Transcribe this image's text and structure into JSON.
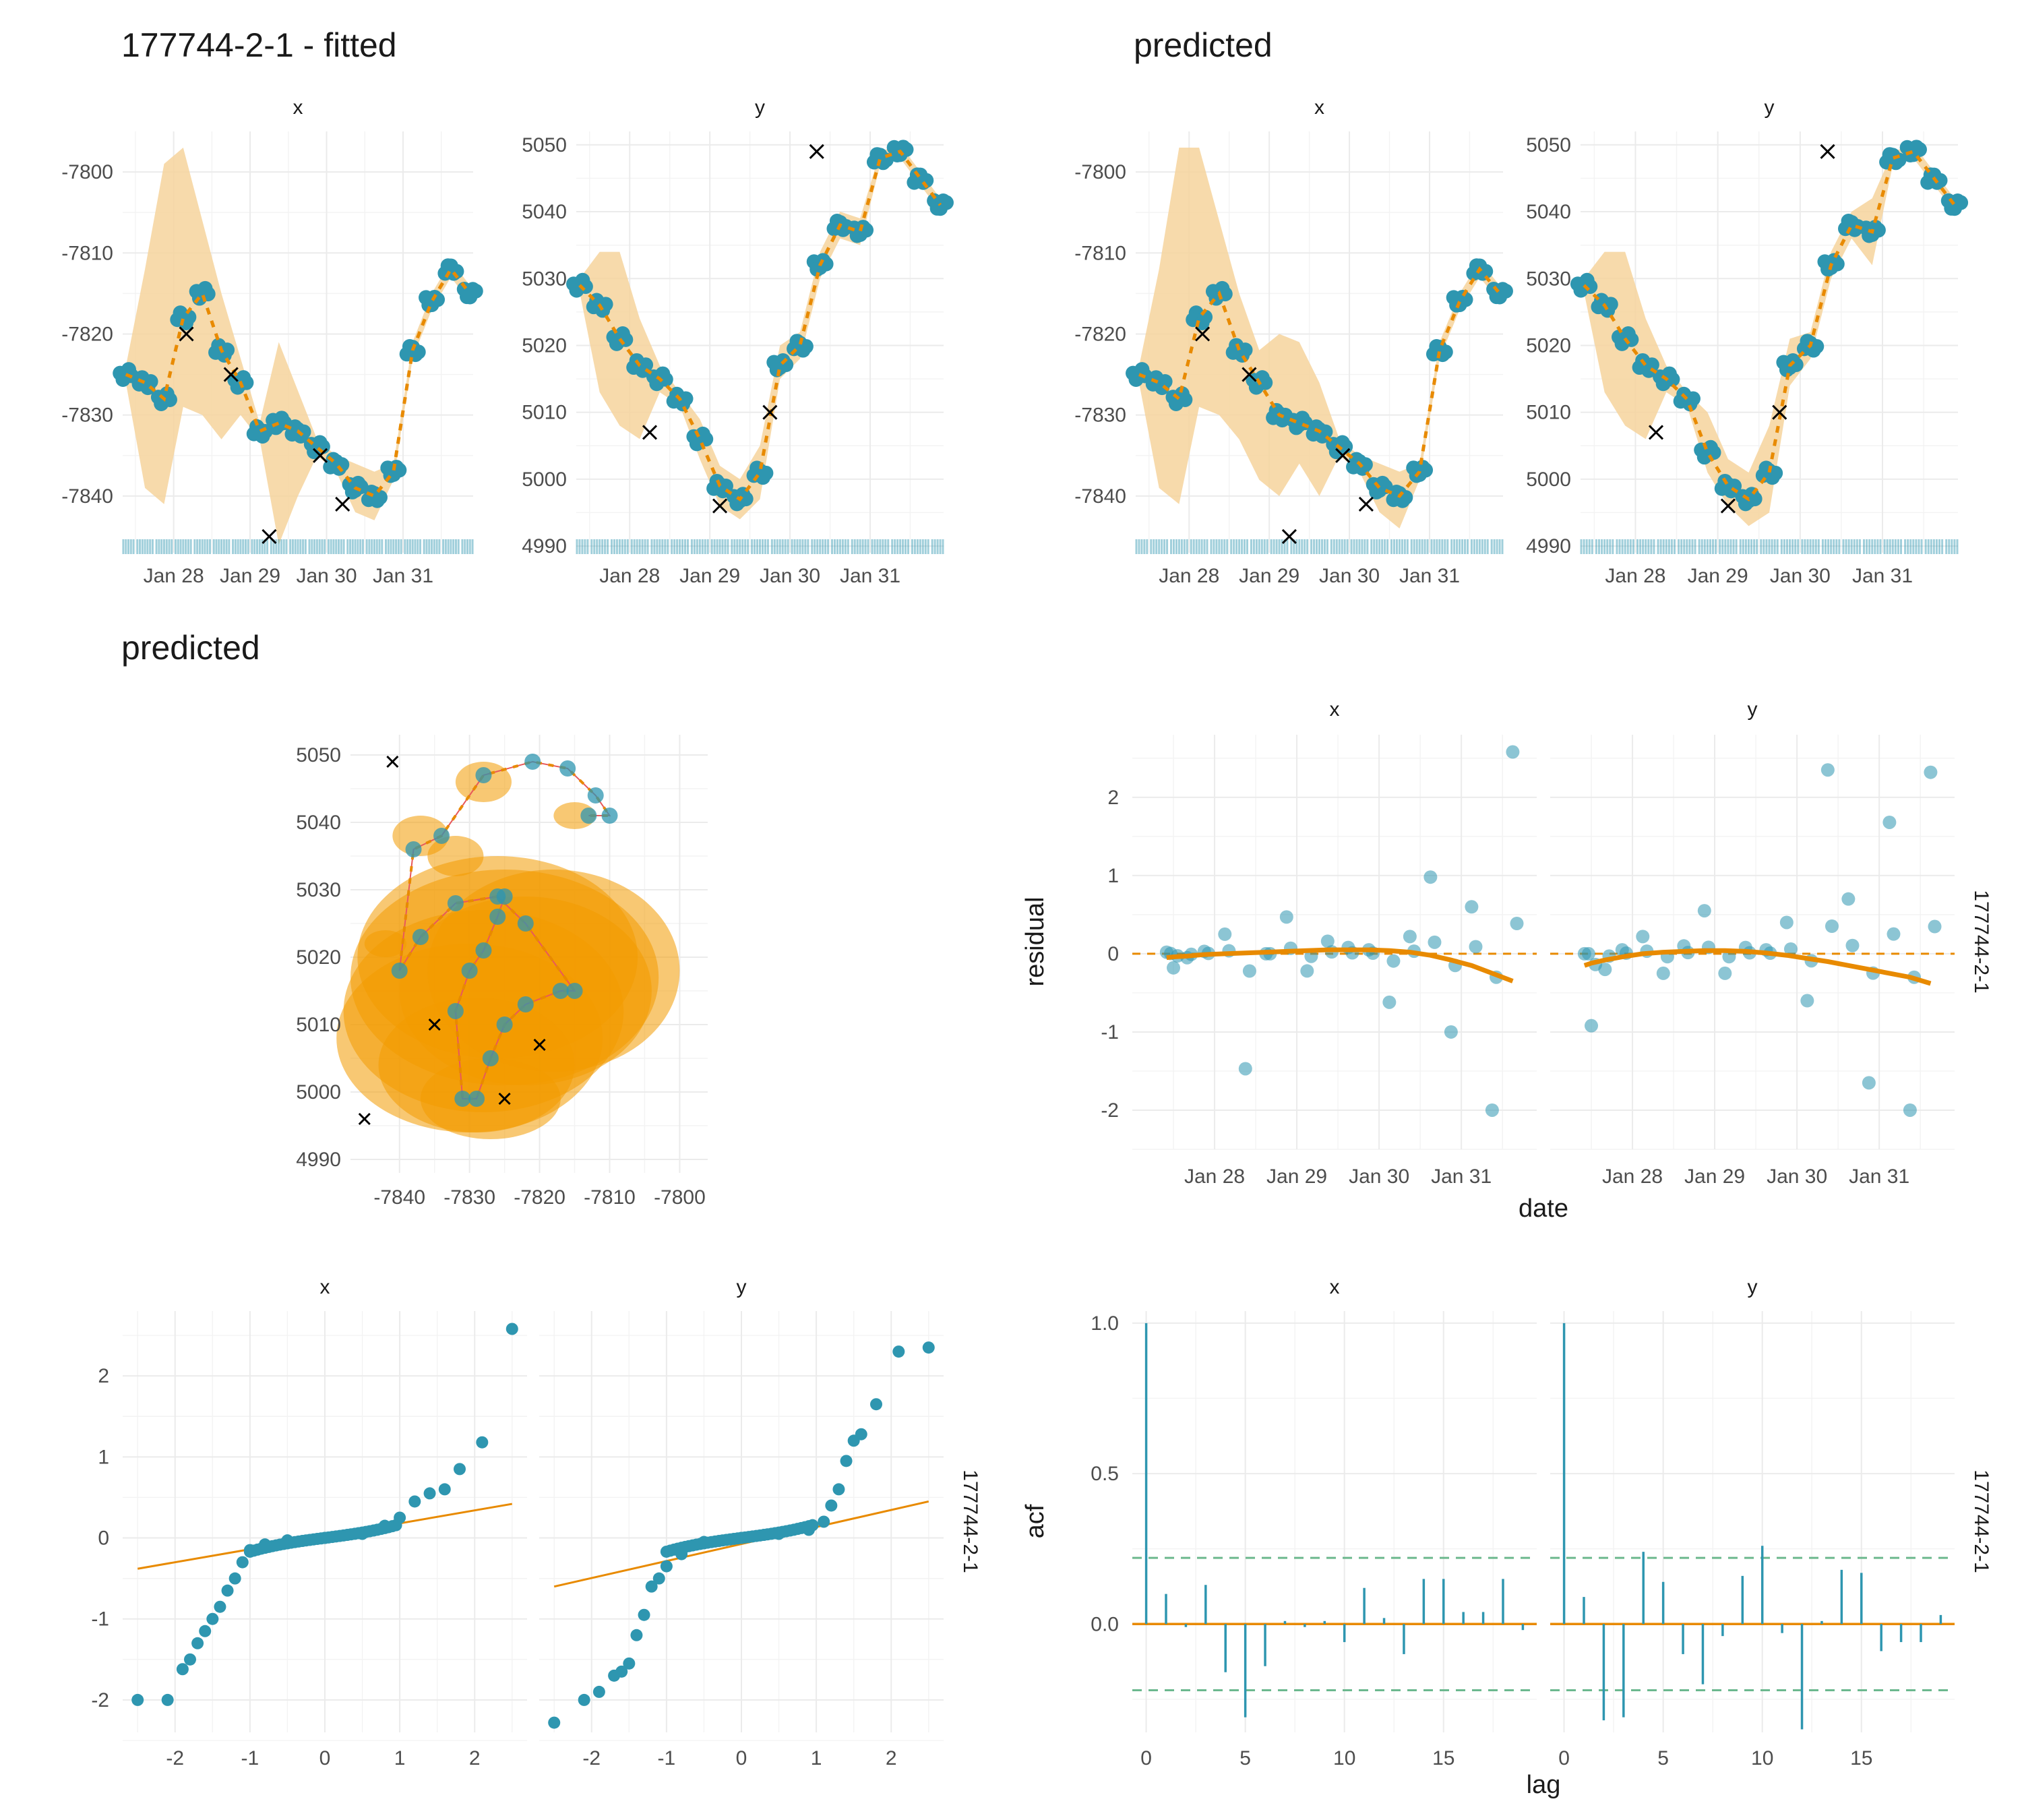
{
  "titles": {
    "fitted": "177744-2-1 - fitted",
    "predicted_ts": "predicted",
    "predicted_map": "predicted"
  },
  "colors": {
    "point": "#2e96b0",
    "fit_line": "#e88a00",
    "band": "#f6d49c",
    "ellipse": "#f29a00",
    "path_red": "#e8585a",
    "acf_bound": "#6cb88e",
    "observed_x": "#000000",
    "grid": "#ebebeb"
  },
  "strip_labels": {
    "x": "x",
    "y": "y",
    "id": "177744-2-1"
  },
  "axis_labels": {
    "residual": "residual",
    "date": "date",
    "acf": "acf",
    "lag": "lag"
  },
  "date_ticks": [
    "Jan 28",
    "Jan 29",
    "Jan 30",
    "Jan 31"
  ],
  "chart_data": [
    {
      "panel": "fitted-x",
      "type": "line",
      "x": [
        "2020-01-27 09:00",
        "2020-01-27 15:00",
        "2020-01-27 21:00",
        "2020-01-28 03:00",
        "2020-01-28 09:00",
        "2020-01-28 15:00",
        "2020-01-28 21:00",
        "2020-01-29 03:00",
        "2020-01-29 09:00",
        "2020-01-29 15:00",
        "2020-01-29 21:00",
        "2020-01-30 03:00",
        "2020-01-30 09:00",
        "2020-01-30 15:00",
        "2020-01-30 21:00",
        "2020-01-31 03:00",
        "2020-01-31 09:00",
        "2020-01-31 15:00",
        "2020-01-31 21:00"
      ],
      "estimate": [
        -7825,
        -7826,
        -7828,
        -7818,
        -7815,
        -7822,
        -7826,
        -7832,
        -7831,
        -7832,
        -7834,
        -7836,
        -7839,
        -7840,
        -7837,
        -7822,
        -7816,
        -7812,
        -7815
      ],
      "lower": [
        -7826,
        -7839,
        -7841,
        -7829,
        -7830,
        -7833,
        -7830,
        -7833,
        -7846,
        -7840,
        -7835,
        -7837,
        -7842,
        -7843,
        -7838,
        -7823,
        -7817,
        -7813,
        -7816
      ],
      "upper": [
        -7824,
        -7812,
        -7799,
        -7797,
        -7806,
        -7815,
        -7823,
        -7831,
        -7821,
        -7827,
        -7833,
        -7835,
        -7836,
        -7837,
        -7836,
        -7821,
        -7815,
        -7811,
        -7814
      ],
      "observed_crosses": [
        [
          "2020-01-28 04:00",
          -7820
        ],
        [
          "2020-01-28 18:00",
          -7825
        ],
        [
          "2020-01-29 06:00",
          -7845
        ],
        [
          "2020-01-29 22:00",
          -7835
        ],
        [
          "2020-01-30 05:00",
          -7841
        ]
      ],
      "ylim": [
        -7847,
        -7795
      ],
      "yticks": [
        -7840,
        -7830,
        -7820,
        -7810,
        -7800
      ]
    },
    {
      "panel": "fitted-y",
      "type": "line",
      "x": [
        "2020-01-27 09:00",
        "2020-01-27 15:00",
        "2020-01-27 21:00",
        "2020-01-28 03:00",
        "2020-01-28 09:00",
        "2020-01-28 15:00",
        "2020-01-28 21:00",
        "2020-01-29 03:00",
        "2020-01-29 09:00",
        "2020-01-29 15:00",
        "2020-01-29 21:00",
        "2020-01-30 03:00",
        "2020-01-30 09:00",
        "2020-01-30 15:00",
        "2020-01-30 21:00",
        "2020-01-31 03:00",
        "2020-01-31 09:00",
        "2020-01-31 15:00",
        "2020-01-31 21:00"
      ],
      "estimate": [
        5029,
        5026,
        5021,
        5017,
        5015,
        5012,
        5006,
        4999,
        4997,
        5001,
        5017,
        5020,
        5032,
        5038,
        5037,
        5048,
        5049,
        5045,
        5041
      ],
      "lower": [
        5028,
        5013,
        5008,
        5006,
        5013,
        5011,
        5003,
        4996,
        4994,
        4997,
        5015,
        5018,
        5030,
        5036,
        5035,
        5047,
        5048,
        5044,
        5040
      ],
      "upper": [
        5030,
        5034,
        5034,
        5024,
        5017,
        5013,
        5009,
        5002,
        5000,
        5005,
        5020,
        5022,
        5034,
        5040,
        5039,
        5049,
        5050,
        5046,
        5042
      ],
      "observed_crosses": [
        [
          "2020-01-28 06:00",
          5007
        ],
        [
          "2020-01-29 03:00",
          4996
        ],
        [
          "2020-01-29 18:00",
          5010
        ],
        [
          "2020-01-30 08:00",
          5049
        ]
      ],
      "ylim": [
        4989,
        5052
      ],
      "yticks": [
        4990,
        5000,
        5010,
        5020,
        5030,
        5040,
        5050
      ]
    },
    {
      "panel": "predicted-x",
      "type": "line",
      "x": [
        "2020-01-27 09:00",
        "2020-01-27 15:00",
        "2020-01-27 21:00",
        "2020-01-28 03:00",
        "2020-01-28 09:00",
        "2020-01-28 15:00",
        "2020-01-28 21:00",
        "2020-01-29 03:00",
        "2020-01-29 09:00",
        "2020-01-29 15:00",
        "2020-01-29 21:00",
        "2020-01-30 03:00",
        "2020-01-30 09:00",
        "2020-01-30 15:00",
        "2020-01-30 21:00",
        "2020-01-31 03:00",
        "2020-01-31 09:00",
        "2020-01-31 15:00",
        "2020-01-31 21:00"
      ],
      "estimate": [
        -7825,
        -7826,
        -7828,
        -7818,
        -7815,
        -7822,
        -7826,
        -7830,
        -7831,
        -7832,
        -7834,
        -7836,
        -7839,
        -7840,
        -7837,
        -7822,
        -7816,
        -7812,
        -7815
      ],
      "lower": [
        -7826,
        -7839,
        -7841,
        -7829,
        -7830,
        -7833,
        -7838,
        -7840,
        -7836,
        -7840,
        -7835,
        -7837,
        -7842,
        -7844,
        -7838,
        -7823,
        -7817,
        -7813,
        -7816
      ],
      "upper": [
        -7824,
        -7812,
        -7797,
        -7797,
        -7806,
        -7815,
        -7822,
        -7820,
        -7821,
        -7826,
        -7833,
        -7835,
        -7836,
        -7837,
        -7836,
        -7821,
        -7815,
        -7811,
        -7814
      ],
      "observed_crosses": [
        [
          "2020-01-28 04:00",
          -7820
        ],
        [
          "2020-01-28 18:00",
          -7825
        ],
        [
          "2020-01-29 06:00",
          -7845
        ],
        [
          "2020-01-29 22:00",
          -7835
        ],
        [
          "2020-01-30 05:00",
          -7841
        ]
      ],
      "ylim": [
        -7847,
        -7795
      ],
      "yticks": [
        -7840,
        -7830,
        -7820,
        -7810,
        -7800
      ]
    },
    {
      "panel": "predicted-y",
      "type": "line",
      "x": [
        "2020-01-27 09:00",
        "2020-01-27 15:00",
        "2020-01-27 21:00",
        "2020-01-28 03:00",
        "2020-01-28 09:00",
        "2020-01-28 15:00",
        "2020-01-28 21:00",
        "2020-01-29 03:00",
        "2020-01-29 09:00",
        "2020-01-29 15:00",
        "2020-01-29 21:00",
        "2020-01-30 03:00",
        "2020-01-30 09:00",
        "2020-01-30 15:00",
        "2020-01-30 21:00",
        "2020-01-31 03:00",
        "2020-01-31 09:00",
        "2020-01-31 15:00",
        "2020-01-31 21:00"
      ],
      "estimate": [
        5029,
        5026,
        5021,
        5017,
        5015,
        5012,
        5004,
        4999,
        4997,
        5001,
        5017,
        5020,
        5032,
        5038,
        5037,
        5048,
        5049,
        5045,
        5041
      ],
      "lower": [
        5028,
        5013,
        5008,
        5006,
        5013,
        5011,
        5001,
        4996,
        4993,
        4995,
        5014,
        5018,
        5030,
        5036,
        5032,
        5047,
        5048,
        5044,
        5040
      ],
      "upper": [
        5030,
        5034,
        5034,
        5024,
        5017,
        5013,
        5010,
        5003,
        5001,
        5008,
        5021,
        5022,
        5034,
        5040,
        5042,
        5049,
        5050,
        5046,
        5042
      ],
      "observed_crosses": [
        [
          "2020-01-28 06:00",
          5007
        ],
        [
          "2020-01-29 03:00",
          4996
        ],
        [
          "2020-01-29 18:00",
          5010
        ],
        [
          "2020-01-30 08:00",
          5049
        ]
      ],
      "ylim": [
        4989,
        5052
      ],
      "yticks": [
        4990,
        5000,
        5010,
        5020,
        5030,
        5040,
        5050
      ]
    },
    {
      "panel": "predicted-map",
      "type": "scatter",
      "track": [
        [
          -7825,
          5029
        ],
        [
          -7826,
          5026
        ],
        [
          -7828,
          5021
        ],
        [
          -7830,
          5018
        ],
        [
          -7832,
          5012
        ],
        [
          -7831,
          4999
        ],
        [
          -7829,
          4999
        ],
        [
          -7827,
          5005
        ],
        [
          -7825,
          5010
        ],
        [
          -7822,
          5013
        ],
        [
          -7817,
          5015
        ],
        [
          -7815,
          5015
        ],
        [
          -7822,
          5025
        ],
        [
          -7826,
          5029
        ],
        [
          -7832,
          5028
        ],
        [
          -7837,
          5023
        ],
        [
          -7840,
          5018
        ],
        [
          -7838,
          5036
        ],
        [
          -7834,
          5038
        ],
        [
          -7828,
          5047
        ],
        [
          -7821,
          5049
        ],
        [
          -7816,
          5048
        ],
        [
          -7812,
          5044
        ],
        [
          -7810,
          5041
        ],
        [
          -7813,
          5041
        ]
      ],
      "ellipses": [
        [
          -7825,
          5017,
          22,
          16
        ],
        [
          -7828,
          5012,
          20,
          15
        ],
        [
          -7830,
          5008,
          19,
          14
        ],
        [
          -7822,
          5015,
          18,
          14
        ],
        [
          -7818,
          5018,
          18,
          15
        ],
        [
          -7826,
          5020,
          20,
          15
        ],
        [
          -7829,
          5004,
          14,
          10
        ],
        [
          -7827,
          4999,
          10,
          6
        ],
        [
          -7837,
          5038,
          4,
          3
        ],
        [
          -7832,
          5035,
          4,
          3
        ],
        [
          -7828,
          5046,
          4,
          3
        ],
        [
          -7815,
          5041,
          3,
          2
        ],
        [
          -7842,
          5022,
          3,
          2
        ]
      ],
      "observed_crosses": [
        [
          -7841,
          5049
        ],
        [
          -7835,
          5010
        ],
        [
          -7820,
          5007
        ],
        [
          -7845,
          4996
        ],
        [
          -7825,
          4999
        ]
      ],
      "xlim": [
        -7847,
        -7796
      ],
      "ylim": [
        4988,
        5053
      ],
      "xticks": [
        -7840,
        -7830,
        -7820,
        -7810,
        -7800
      ],
      "yticks": [
        4990,
        5000,
        5010,
        5020,
        5030,
        5040,
        5050
      ]
    },
    {
      "panel": "residual-x",
      "type": "scatter",
      "x": [
        "2020-01-27 10:00",
        "2020-01-27 12:00",
        "2020-01-27 16:00",
        "2020-01-27 21:00",
        "2020-01-28 03:00",
        "2020-01-28 09:00",
        "2020-01-28 15:00",
        "2020-01-28 21:00",
        "2020-01-29 03:00",
        "2020-01-29 09:00",
        "2020-01-29 15:00",
        "2020-01-29 21:00",
        "2020-01-30 03:00",
        "2020-01-30 09:00",
        "2020-01-30 15:00",
        "2020-01-30 21:00",
        "2020-01-31 03:00",
        "2020-01-31 09:00",
        "2020-01-31 15:00"
      ],
      "residuals": [
        0.02,
        -0.18,
        -0.05,
        0.03,
        0.25,
        -1.47,
        0.0,
        0.47,
        -0.22,
        0.16,
        0.08,
        0.05,
        -0.62,
        0.22,
        0.98,
        -1.0,
        0.6,
        -2.0,
        2.58
      ],
      "smooth": [
        -0.05,
        -0.04,
        -0.03,
        -0.01,
        0.0,
        0.01,
        0.02,
        0.03,
        0.04,
        0.05,
        0.05,
        0.05,
        0.04,
        0.02,
        -0.02,
        -0.08,
        -0.15,
        -0.25,
        -0.35
      ],
      "ylim": [
        -2.5,
        2.8
      ],
      "yticks": [
        -2,
        -1,
        0,
        1,
        2
      ]
    },
    {
      "panel": "residual-y",
      "type": "scatter",
      "x": [
        "2020-01-27 10:00",
        "2020-01-27 12:00",
        "2020-01-27 16:00",
        "2020-01-27 21:00",
        "2020-01-28 03:00",
        "2020-01-28 09:00",
        "2020-01-28 15:00",
        "2020-01-28 21:00",
        "2020-01-29 03:00",
        "2020-01-29 09:00",
        "2020-01-29 15:00",
        "2020-01-29 21:00",
        "2020-01-30 03:00",
        "2020-01-30 09:00",
        "2020-01-30 15:00",
        "2020-01-30 21:00",
        "2020-01-31 03:00",
        "2020-01-31 09:00",
        "2020-01-31 15:00"
      ],
      "residuals": [
        0.0,
        -0.92,
        -0.2,
        0.05,
        0.22,
        -0.25,
        0.1,
        0.55,
        -0.25,
        0.08,
        0.05,
        0.4,
        -0.6,
        2.35,
        0.7,
        -1.65,
        1.68,
        -2.0,
        2.32
      ],
      "smooth": [
        -0.15,
        -0.12,
        -0.08,
        -0.04,
        0.0,
        0.02,
        0.03,
        0.04,
        0.04,
        0.03,
        0.01,
        -0.02,
        -0.06,
        -0.1,
        -0.15,
        -0.2,
        -0.25,
        -0.3,
        -0.38
      ],
      "ylim": [
        -2.5,
        2.8
      ],
      "yticks": [
        -2,
        -1,
        0,
        1,
        2
      ]
    },
    {
      "panel": "qq-x",
      "type": "scatter",
      "theoretical": [
        -2.5,
        -2.1,
        -1.9,
        -1.8,
        -1.7,
        -1.6,
        -1.5,
        -1.4,
        -1.3,
        -1.2,
        -1.1,
        -1.0,
        -0.8,
        -0.5,
        0,
        0.5,
        0.8,
        1.0,
        1.2,
        1.4,
        1.6,
        1.8,
        2.1,
        2.5
      ],
      "sample": [
        -2.0,
        -2.0,
        -1.62,
        -1.5,
        -1.3,
        -1.15,
        -1.0,
        -0.85,
        -0.65,
        -0.5,
        -0.3,
        -0.15,
        -0.08,
        -0.03,
        0.0,
        0.05,
        0.15,
        0.25,
        0.45,
        0.55,
        0.6,
        0.85,
        1.18,
        2.58
      ],
      "reference_line": [
        [
          -2.5,
          -0.38
        ],
        [
          2.5,
          0.42
        ]
      ],
      "xlim": [
        -2.7,
        2.7
      ],
      "ylim": [
        -2.4,
        2.8
      ],
      "xticks": [
        -2,
        -1,
        0,
        1,
        2
      ],
      "yticks": [
        -2,
        -1,
        0,
        1,
        2
      ]
    },
    {
      "panel": "qq-y",
      "type": "scatter",
      "theoretical": [
        -2.5,
        -2.1,
        -1.9,
        -1.7,
        -1.6,
        -1.5,
        -1.4,
        -1.3,
        -1.2,
        -1.1,
        -1.0,
        -0.8,
        -0.5,
        0,
        0.5,
        0.9,
        1.1,
        1.2,
        1.3,
        1.4,
        1.5,
        1.6,
        1.8,
        2.1,
        2.5
      ],
      "sample": [
        -2.28,
        -2.0,
        -1.9,
        -1.7,
        -1.65,
        -1.55,
        -1.2,
        -0.95,
        -0.6,
        -0.5,
        -0.35,
        -0.2,
        -0.05,
        0.0,
        0.05,
        0.1,
        0.2,
        0.4,
        0.6,
        0.95,
        1.2,
        1.28,
        1.65,
        2.3,
        2.35
      ],
      "reference_line": [
        [
          -2.5,
          -0.6
        ],
        [
          2.5,
          0.45
        ]
      ],
      "xlim": [
        -2.7,
        2.7
      ],
      "ylim": [
        -2.4,
        2.8
      ],
      "xticks": [
        -2,
        -1,
        0,
        1,
        2
      ],
      "yticks": [
        -2,
        -1,
        0,
        1,
        2
      ]
    },
    {
      "panel": "acf-x",
      "type": "bar",
      "lags": [
        0,
        1,
        2,
        3,
        4,
        5,
        6,
        7,
        8,
        9,
        10,
        11,
        12,
        13,
        14,
        15,
        16,
        17,
        18,
        19
      ],
      "acf": [
        1.0,
        0.1,
        -0.01,
        0.13,
        -0.16,
        -0.31,
        -0.14,
        0.01,
        -0.01,
        0.01,
        -0.06,
        0.12,
        0.02,
        -0.1,
        0.15,
        0.15,
        0.04,
        0.04,
        0.15,
        -0.02
      ],
      "bound": 0.22,
      "xlim": [
        -0.7,
        19.7
      ],
      "ylim": [
        -0.36,
        1.04
      ],
      "xticks": [
        0,
        5,
        10,
        15
      ],
      "yticks": [
        0.0,
        0.5,
        1.0
      ]
    },
    {
      "panel": "acf-y",
      "type": "bar",
      "lags": [
        0,
        1,
        2,
        3,
        4,
        5,
        6,
        7,
        8,
        9,
        10,
        11,
        12,
        13,
        14,
        15,
        16,
        17,
        18,
        19
      ],
      "acf": [
        1.0,
        0.09,
        -0.32,
        -0.31,
        0.24,
        0.14,
        -0.1,
        -0.2,
        -0.04,
        0.16,
        0.26,
        -0.03,
        -0.35,
        0.01,
        0.18,
        0.17,
        -0.09,
        -0.06,
        -0.06,
        0.03
      ],
      "bound": 0.22,
      "xlim": [
        -0.7,
        19.7
      ],
      "ylim": [
        -0.36,
        1.04
      ],
      "xticks": [
        0,
        5,
        10,
        15
      ],
      "yticks": [
        0.0,
        0.5,
        1.0
      ]
    }
  ]
}
